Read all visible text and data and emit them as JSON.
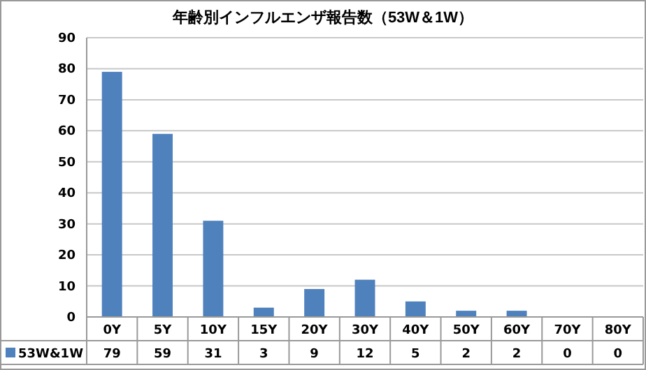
{
  "chart_data": {
    "type": "bar",
    "title": "年齢別インフルエンザ報告数（53W＆1W）",
    "categories": [
      "0Y",
      "5Y",
      "10Y",
      "15Y",
      "20Y",
      "30Y",
      "40Y",
      "50Y",
      "60Y",
      "70Y",
      "80Y"
    ],
    "series": [
      {
        "name": "53W&1W",
        "color": "#4f81bd",
        "values": [
          79,
          59,
          31,
          3,
          9,
          12,
          5,
          2,
          2,
          0,
          0
        ]
      }
    ],
    "ylim": [
      0,
      90
    ],
    "yticks": [
      0,
      10,
      20,
      30,
      40,
      50,
      60,
      70,
      80,
      90
    ],
    "grid": "y",
    "data_labels": true,
    "legend": "bottom"
  }
}
